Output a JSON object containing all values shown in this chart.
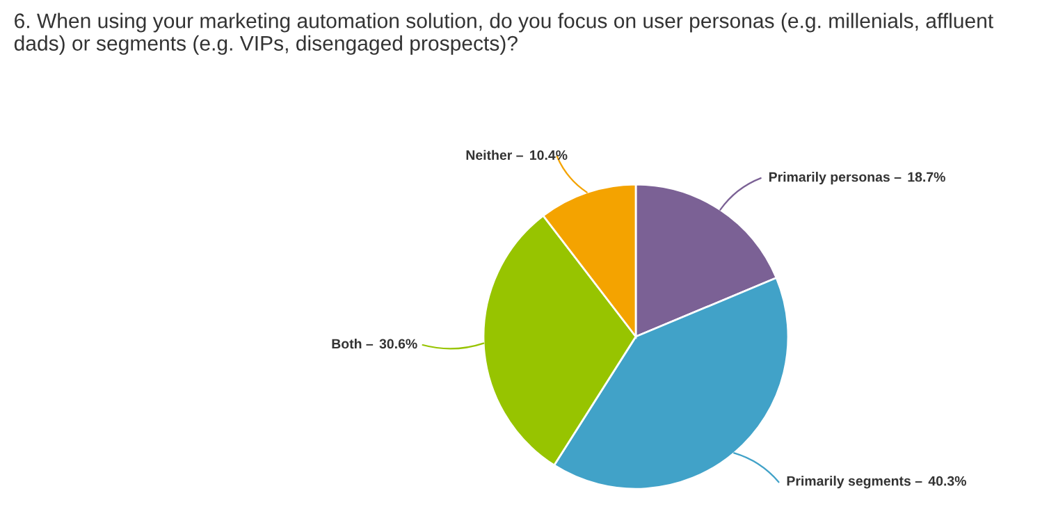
{
  "chart_data": {
    "type": "pie",
    "title": "6. When using your marketing automation solution, do you focus on user personas (e.g. millenials, affluent dads) or segments (e.g. VIPs, disengaged prospects)?",
    "categories": [
      "Primarily personas –",
      "Primarily segments –",
      "Both –",
      "Neither –"
    ],
    "values": [
      18.7,
      40.3,
      30.6,
      10.4
    ],
    "colors": [
      "#7b6195",
      "#41a2c8",
      "#97c400",
      "#f4a300"
    ],
    "value_labels": [
      "18.7%",
      "40.3%",
      "30.6%",
      "10.4%"
    ],
    "legend": false
  }
}
